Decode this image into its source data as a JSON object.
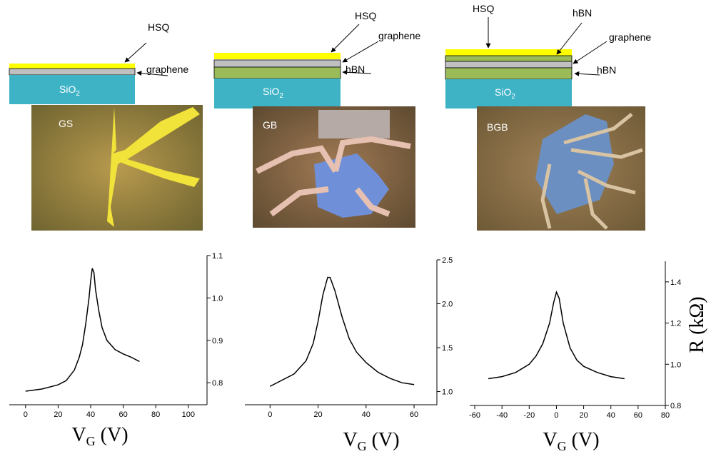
{
  "diagrams": [
    {
      "layers": [
        "HSQ",
        "graphene"
      ],
      "substrate": "SiO",
      "substrate_sub": "2",
      "sample": "GS"
    },
    {
      "layers": [
        "HSQ",
        "graphene",
        "hBN"
      ],
      "substrate": "SiO",
      "substrate_sub": "2",
      "sample": "GB"
    },
    {
      "layers": [
        "HSQ",
        "hBN",
        "graphene",
        "hBN"
      ],
      "substrate": "SiO",
      "substrate_sub": "2",
      "sample": "BGB"
    }
  ],
  "chart_data": [
    {
      "type": "line",
      "x_label": "V",
      "x_label_sub": "G",
      "x_label_rest": " (V)",
      "x": [
        0,
        10,
        20,
        25,
        30,
        33,
        35,
        37,
        39,
        40,
        41,
        42,
        43,
        45,
        47,
        50,
        55,
        60,
        65,
        70
      ],
      "series": [
        {
          "color": "#000000",
          "values": [
            0.78,
            0.785,
            0.795,
            0.805,
            0.83,
            0.86,
            0.89,
            0.94,
            1.0,
            1.04,
            1.07,
            1.06,
            1.02,
            0.97,
            0.93,
            0.9,
            0.878,
            0.868,
            0.86,
            0.85
          ]
        }
      ],
      "xlim": [
        -10,
        111.5
      ],
      "ylim": [
        0.748,
        1.1
      ],
      "xticks": [
        0,
        20,
        40,
        60,
        80,
        100
      ],
      "yticks": [
        {
          "value": 0.8,
          "label": "0.8"
        },
        0.9,
        {
          "value": 1,
          "label": "1.0"
        },
        1.1
      ]
    },
    {
      "type": "line",
      "x_label": "V",
      "x_label_sub": "G",
      "x_label_rest": " (V)",
      "x": [
        0,
        10,
        15,
        18,
        20,
        22,
        24,
        25,
        27,
        30,
        33,
        36,
        40,
        45,
        50,
        55,
        60
      ],
      "series": [
        {
          "color": "#000000",
          "values": [
            1.06,
            1.2,
            1.35,
            1.55,
            1.8,
            2.1,
            2.3,
            2.3,
            2.15,
            1.85,
            1.6,
            1.45,
            1.33,
            1.22,
            1.15,
            1.1,
            1.08
          ]
        }
      ],
      "xlim": [
        -10.5,
        69.5
      ],
      "ylim": [
        0.85,
        2.5
      ],
      "xticks": [
        0,
        20,
        40,
        60
      ],
      "yticks": [
        {
          "value": 1,
          "label": "1.0"
        },
        1.5,
        {
          "value": 2,
          "label": "2.0"
        },
        2.5
      ]
    },
    {
      "type": "line",
      "x_label": "V",
      "x_label_sub": "G",
      "x_label_rest": " (V)",
      "y_label": "R (kΩ)",
      "x": [
        -50,
        -40,
        -30,
        -20,
        -15,
        -10,
        -5,
        -2,
        0,
        2,
        5,
        10,
        15,
        20,
        30,
        40,
        50
      ],
      "series": [
        {
          "color": "#000000",
          "values": [
            0.93,
            0.94,
            0.96,
            1.0,
            1.04,
            1.1,
            1.2,
            1.3,
            1.35,
            1.32,
            1.2,
            1.08,
            1.02,
            0.99,
            0.96,
            0.94,
            0.93
          ]
        }
      ],
      "xlim": [
        -63.7,
        80
      ],
      "ylim": [
        0.8,
        1.5
      ],
      "xticks": [
        -60,
        -40,
        -20,
        0,
        20,
        40,
        60,
        80
      ],
      "yticks": [
        0.8,
        {
          "value": 1,
          "label": "1.0"
        },
        1.2,
        1.4
      ]
    }
  ]
}
